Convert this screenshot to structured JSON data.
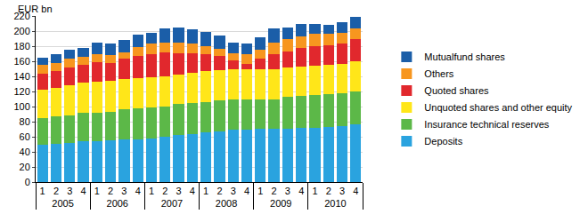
{
  "chart_data": {
    "type": "bar",
    "stacked": true,
    "y_label": "EUR bn",
    "categories": [
      [
        "2005",
        "1"
      ],
      [
        "2005",
        "2"
      ],
      [
        "2005",
        "3"
      ],
      [
        "2005",
        "4"
      ],
      [
        "2006",
        "1"
      ],
      [
        "2006",
        "2"
      ],
      [
        "2006",
        "3"
      ],
      [
        "2006",
        "4"
      ],
      [
        "2007",
        "1"
      ],
      [
        "2007",
        "2"
      ],
      [
        "2007",
        "3"
      ],
      [
        "2007",
        "4"
      ],
      [
        "2008",
        "1"
      ],
      [
        "2008",
        "2"
      ],
      [
        "2008",
        "3"
      ],
      [
        "2008",
        "4"
      ],
      [
        "2009",
        "1"
      ],
      [
        "2009",
        "2"
      ],
      [
        "2009",
        "3"
      ],
      [
        "2009",
        "4"
      ],
      [
        "2010",
        "1"
      ],
      [
        "2010",
        "2"
      ],
      [
        "2010",
        "3"
      ],
      [
        "2010",
        "4"
      ]
    ],
    "series": [
      {
        "name": "Deposits",
        "color": "#2aa3df",
        "values": [
          50,
          51,
          52,
          54,
          54,
          55,
          56,
          57,
          58,
          60,
          62,
          64,
          66,
          67,
          69,
          70,
          71,
          71,
          71,
          72,
          72,
          73,
          74,
          76
        ]
      },
      {
        "name": "Insurance technical reserves",
        "color": "#5cb848",
        "values": [
          35,
          36,
          36,
          38,
          38,
          38,
          40,
          41,
          41,
          40,
          41,
          41,
          40,
          41,
          41,
          39,
          38,
          39,
          42,
          42,
          43,
          43,
          44,
          44
        ]
      },
      {
        "name": "Unquoted shares and other equity",
        "color": "#ffe619",
        "values": [
          37,
          38,
          40,
          40,
          41,
          41,
          40,
          40,
          40,
          40,
          39,
          40,
          41,
          40,
          40,
          41,
          40,
          40,
          39,
          39,
          39,
          39,
          39,
          40
        ]
      },
      {
        "name": "Quoted shares",
        "color": "#e1282d",
        "values": [
          21,
          22,
          24,
          23,
          26,
          24,
          27,
          29,
          31,
          32,
          29,
          26,
          23,
          19,
          11,
          7,
          14,
          20,
          21,
          25,
          26,
          26,
          27,
          29
        ]
      },
      {
        "name": "Others",
        "color": "#f7961f",
        "values": [
          12,
          11,
          11,
          11,
          11,
          10,
          9,
          12,
          13,
          13,
          14,
          12,
          10,
          10,
          10,
          12,
          12,
          15,
          16,
          15,
          16,
          15,
          14,
          15
        ]
      },
      {
        "name": "Mutualfund shares",
        "color": "#1b5ea8",
        "values": [
          10,
          12,
          12,
          12,
          15,
          15,
          16,
          16,
          15,
          19,
          20,
          19,
          19,
          17,
          14,
          14,
          17,
          18,
          16,
          16,
          13,
          12,
          14,
          15
        ]
      }
    ],
    "ylim": [
      0,
      220
    ],
    "yticks": [
      0,
      20,
      40,
      60,
      80,
      100,
      120,
      140,
      160,
      180,
      200,
      220
    ],
    "grid": true,
    "legend": "right"
  }
}
